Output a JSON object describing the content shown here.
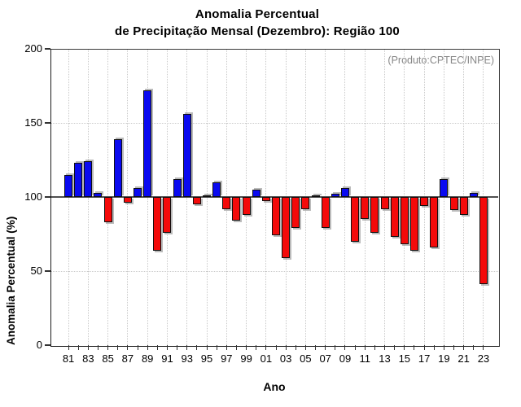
{
  "title": {
    "line1": "Anomalia Percentual",
    "line2": "de Precipitação Mensal (Dezembro): Região 100"
  },
  "annotations": {
    "product": "(Produto:CPTEC/INPE)"
  },
  "x_axis": {
    "title": "Ano",
    "tick_labels": [
      "81",
      "83",
      "85",
      "87",
      "89",
      "91",
      "93",
      "95",
      "97",
      "99",
      "01",
      "03",
      "05",
      "07",
      "09",
      "11",
      "13",
      "15",
      "17",
      "19",
      "21",
      "23"
    ]
  },
  "y_axis": {
    "title": "Anomalia Percentual (%)",
    "tick_labels": [
      "0",
      "50",
      "100",
      "150",
      "200"
    ]
  },
  "chart_data": {
    "type": "bar",
    "title": "Anomalia Percentual de Precipitação Mensal (Dezembro): Região 100",
    "xlabel": "Ano",
    "ylabel": "Anomalia Percentual (%)",
    "ylim": [
      0,
      200
    ],
    "yticks": [
      0,
      50,
      100,
      150,
      200
    ],
    "baseline": 100,
    "grid_y": [
      50,
      150
    ],
    "grid": "dotted",
    "label_every": 2,
    "categories": [
      "81",
      "82",
      "83",
      "84",
      "85",
      "86",
      "87",
      "88",
      "89",
      "90",
      "91",
      "92",
      "93",
      "94",
      "95",
      "96",
      "97",
      "98",
      "99",
      "00",
      "01",
      "02",
      "03",
      "04",
      "05",
      "06",
      "07",
      "08",
      "09",
      "10",
      "11",
      "12",
      "13",
      "14",
      "15",
      "16",
      "17",
      "18",
      "19",
      "20",
      "21",
      "22",
      "23"
    ],
    "values": [
      115,
      123,
      124,
      103,
      83,
      139,
      96,
      106,
      172,
      64,
      76,
      112,
      156,
      95,
      101,
      110,
      92,
      84,
      88,
      105,
      97,
      74,
      59,
      79,
      92,
      101,
      79,
      102,
      106,
      70,
      85,
      76,
      92,
      73,
      68,
      64,
      94,
      66,
      112,
      91,
      88,
      103,
      41
    ],
    "colors": {
      "above_baseline": "#0a0af0",
      "below_baseline": "#f40a0a",
      "baseline_line": "#4f4f4f",
      "grid": "#c9c9c9",
      "annotation_text": "#878787"
    }
  }
}
